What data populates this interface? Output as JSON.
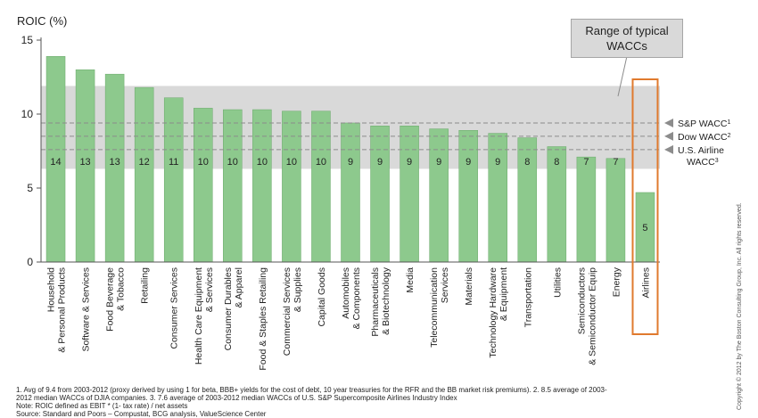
{
  "chart_data": {
    "type": "bar",
    "ylabel": "ROIC (%)",
    "ylim": [
      0,
      15
    ],
    "yticks": [
      0,
      5,
      10,
      15
    ],
    "categories": [
      "Household & Personal Products",
      "Software & Services",
      "Food Beverage & Tobacco",
      "Retailing",
      "Consumer Services",
      "Health Care Equipment & Services",
      "Consumer Durables & Apparel",
      "Food & Staples Retailing",
      "Commercial Services & Supplies",
      "Capital Goods",
      "Automobiles & Components",
      "Pharmaceuticals & Biotechnology",
      "Media",
      "Telecommunication Services",
      "Materials",
      "Technology Hardware & Equipment",
      "Transportation",
      "Utilities",
      "Semiconductors & Semiconductor Equip",
      "Energy",
      "Airlines"
    ],
    "category_lines": [
      [
        "Household",
        "& Personal Products"
      ],
      [
        "Software & Services"
      ],
      [
        "Food Beverage",
        "& Tobacco"
      ],
      [
        "Retailing"
      ],
      [
        "Consumer Services"
      ],
      [
        "Health Care Equipment",
        "& Services"
      ],
      [
        "Consumer Durables",
        "& Apparel"
      ],
      [
        "Food & Staples Retailing"
      ],
      [
        "Commercial Services",
        "& Supplies"
      ],
      [
        "Capital Goods"
      ],
      [
        "Automobiles",
        "& Components"
      ],
      [
        "Pharmaceuticals",
        "& Biotechnology"
      ],
      [
        "Media"
      ],
      [
        "Telecommunication",
        "Services"
      ],
      [
        "Materials"
      ],
      [
        "Technology Hardware",
        "& Equipment"
      ],
      [
        "Transportation"
      ],
      [
        "Utilities"
      ],
      [
        "Semiconductors",
        "& Semiconductor Equip"
      ],
      [
        "Energy"
      ],
      [
        "Airlines"
      ]
    ],
    "values": [
      13.9,
      13.0,
      12.7,
      11.8,
      11.1,
      10.4,
      10.3,
      10.3,
      10.2,
      10.2,
      9.4,
      9.2,
      9.2,
      9.0,
      8.9,
      8.7,
      8.4,
      7.8,
      7.1,
      7.0,
      4.7
    ],
    "data_labels": [
      "14",
      "13",
      "13",
      "12",
      "11",
      "10",
      "10",
      "10",
      "10",
      "10",
      "9",
      "9",
      "9",
      "9",
      "9",
      "9",
      "8",
      "8",
      "7",
      "7",
      "5"
    ],
    "wacc_band": [
      6.3,
      11.9
    ],
    "wacc_lines": [
      {
        "label": "S&P WACC",
        "sup": "1",
        "value": 9.4
      },
      {
        "label": "Dow WACC",
        "sup": "2",
        "value": 8.5
      },
      {
        "label": "U.S. Airline",
        "label2": "WACC",
        "sup": "3",
        "value": 7.6
      }
    ],
    "highlight_category": "Airlines"
  },
  "callout": {
    "line1": "Range of typical",
    "line2": "WACCs"
  },
  "footnote": {
    "line1": "1. Avg of 9.4 from 2003-2012 (proxy derived by using 1 for beta, BBB+ yields for the cost of debt, 10 year treasuries for the RFR and the BB market risk premiums). 2. 8.5 average of 2003-",
    "line2": "2012 median WACCs of DJIA companies. 3. 7.6 average of 2003-2012 median WACCs of U.S. S&P Supercomposite Airlines Industry Index",
    "line3": "Note: ROIC defined as EBIT * (1- tax rate) / net assets",
    "line4": "Source: Standard and Poors – Compustat, BCG analysis, ValueScience Center"
  },
  "copyright": "Copyright © 2012 by The Boston Consulting Group, Inc. All rights reserved.",
  "colors": {
    "bar": "#8dc98d",
    "bar_stroke": "#6aa86a",
    "band": "#d9d9d9",
    "dashed": "#8c8c8c",
    "highlight": "#e07a2e",
    "marker": "#8c8c8c"
  }
}
